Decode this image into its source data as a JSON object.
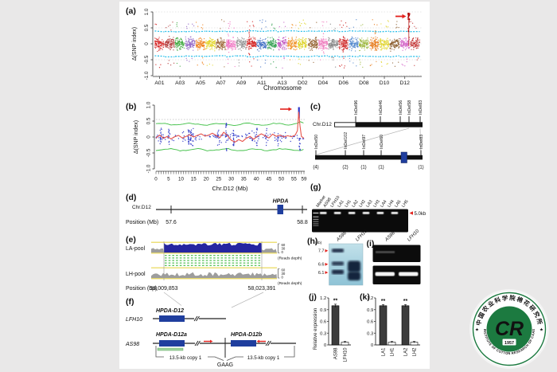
{
  "figure": {
    "canvas_bg": "#e9e8e8",
    "panel_bg": "#ffffff"
  },
  "panel_a": {
    "label": "(a)",
    "ylabel": "Δ(SNP index)",
    "xlabel": "Chromosome",
    "ytick_labels": [
      "1.0",
      "0.5",
      "0",
      "-0.5",
      "-1.0"
    ],
    "ytick_values": [
      1.0,
      0.5,
      0,
      -0.5,
      -1.0
    ],
    "xtick_labels": [
      "A01",
      "A03",
      "A05",
      "A07",
      "A09",
      "A11",
      "A13",
      "D02",
      "D04",
      "D06",
      "D08",
      "D10",
      "D12"
    ],
    "chromosomes": [
      "A01",
      "A02",
      "A03",
      "A04",
      "A05",
      "A06",
      "A07",
      "A08",
      "A09",
      "A10",
      "A11",
      "A12",
      "A13",
      "D01",
      "D02",
      "D03",
      "D04",
      "D05",
      "D06",
      "D07",
      "D08",
      "D09",
      "D10",
      "D11",
      "D12",
      "D13"
    ],
    "colors": [
      "#d42020",
      "#b03535",
      "#3ca83c",
      "#8f62c4",
      "#f07f16",
      "#e2d41e",
      "#9a6230",
      "#f06ec0",
      "#8f8f8f",
      "#d42222",
      "#3f6fc4",
      "#2f9e4f",
      "#c256c2",
      "#ef8c1a",
      "#ddd21c",
      "#8f5a28",
      "#ef7fc0",
      "#7f7f7f",
      "#cf2a2a",
      "#4f86cc",
      "#9ab63a",
      "#e87f22",
      "#e0d428",
      "#8a5a2a",
      "#d465c8",
      "#c43a3a"
    ],
    "threshold_color": "#2ec0ea",
    "highlight_color": "#b00000"
  },
  "panel_b": {
    "label": "(b)",
    "ylabel": "Δ(SNP index)",
    "xlabel": "Chr.D12 (Mb)",
    "ytick_labels": [
      "1.0",
      "0.5",
      "0",
      "-0.5",
      "-1.0"
    ],
    "ytick_values": [
      1.0,
      0.5,
      0,
      -0.5,
      -1.0
    ],
    "xtick_values": [
      0,
      5,
      10,
      15,
      20,
      25,
      30,
      35,
      40,
      45,
      50,
      55,
      59
    ],
    "point_color": "#2b35c8",
    "line_color": "#e8544b",
    "band_color": "#3dbf43"
  },
  "panel_c": {
    "label": "(c)",
    "chromosome": "Chr.D12",
    "top_markers": [
      "InDel96",
      "InDel46",
      "InDel56",
      "InDel58",
      "InDel83"
    ],
    "bottom_markers": [
      "InDel50",
      "InDel102",
      "InDel97",
      "InDel60",
      "InDel83"
    ],
    "recombinant_counts": [
      "(4)",
      "(2)",
      "(1)",
      "(1)",
      "(1)"
    ],
    "gene_color": "#1f3e9e"
  },
  "panel_d": {
    "label": "(d)",
    "chromosome": "Chr.D12",
    "gene": "HPDA",
    "axis_label": "Position (Mb)",
    "start": "57.6",
    "end": "58.8"
  },
  "panel_e": {
    "label": "(e)",
    "track1": "LA-pool",
    "track2": "LH-pool",
    "scale_ticks": [
      "60",
      "30",
      "0"
    ],
    "scale_caption": "(Reads depth)",
    "axis_label": "Position (bp)",
    "start": "58,009,853",
    "end": "58,023,391"
  },
  "panel_f": {
    "label": "(f)",
    "hap1_name": "LFH10",
    "hap1_gene": "HPDA-D12",
    "hap2_name": "AS98",
    "hap2_gene1": "HPDA-D12a",
    "hap2_gene2": "HPDA-D12b",
    "insertion": "GAAG",
    "copy1": "13.5-kb copy 1",
    "copy2": "13.5-kb copy 1"
  },
  "panel_g": {
    "label": "(g)",
    "lanes": [
      "Marker",
      "AS98",
      "LFH10",
      "LA1",
      "LH1",
      "LA2",
      "LH2",
      "LA3",
      "LH3",
      "LA4",
      "LH4",
      "LA5",
      "LH5"
    ],
    "band_lanes_idx": [
      1,
      3,
      5,
      7,
      9,
      11
    ],
    "band_label": "5.0kb"
  },
  "panel_h": {
    "label": "(h)",
    "unit": "(kb)",
    "lanes": [
      "AS98",
      "LFH10"
    ],
    "size_markers": [
      "7.7",
      "6.6",
      "6.1"
    ]
  },
  "panel_i": {
    "label": "(i)",
    "lanes": [
      "AS98",
      "LFH10"
    ]
  },
  "panel_j": {
    "label": "(j)",
    "ylabel": "Relative expression"
  },
  "panel_k": {
    "label": "(k)"
  },
  "chart_data": [
    {
      "id": "a",
      "type": "scatter",
      "title": "",
      "xlabel": "Chromosome",
      "ylabel": "Δ(SNP index)",
      "ylim": [
        -1.0,
        1.0
      ],
      "x_categories": [
        "A01",
        "A02",
        "A03",
        "A04",
        "A05",
        "A06",
        "A07",
        "A08",
        "A09",
        "A10",
        "A11",
        "A12",
        "A13",
        "D01",
        "D02",
        "D03",
        "D04",
        "D05",
        "D06",
        "D07",
        "D08",
        "D09",
        "D10",
        "D11",
        "D12",
        "D13"
      ],
      "gridlines": [
        -1.0,
        -0.5,
        0,
        0.5,
        1.0
      ],
      "threshold_lines": [
        0.4,
        -0.4
      ],
      "significant_peak": {
        "chromosome": "D12",
        "delta_snp_index": 1.0,
        "annotation": "red-arrow"
      }
    },
    {
      "id": "b",
      "type": "scatter+line",
      "xlabel": "Chr.D12 (Mb)",
      "ylabel": "Δ(SNP index)",
      "xlim": [
        0,
        59
      ],
      "ylim": [
        -1.0,
        1.0
      ],
      "xticks": [
        0,
        5,
        10,
        15,
        20,
        25,
        30,
        35,
        40,
        45,
        50,
        55,
        59
      ],
      "confidence_interval": [
        0.4,
        -0.4
      ],
      "significance_threshold": 0.55,
      "red_line": [
        [
          0,
          -0.03
        ],
        [
          1.5,
          0.06
        ],
        [
          3,
          -0.04
        ],
        [
          4.5,
          0.02
        ],
        [
          6,
          -0.06
        ],
        [
          7.5,
          0.01
        ],
        [
          9,
          0.05
        ],
        [
          10.5,
          -0.03
        ],
        [
          12,
          0.02
        ],
        [
          13.5,
          0.07
        ],
        [
          15,
          0.0
        ],
        [
          16.5,
          0.05
        ],
        [
          18,
          0.1
        ],
        [
          19.5,
          0.03
        ],
        [
          21,
          0.06
        ],
        [
          22.5,
          0.12
        ],
        [
          24,
          0.05
        ],
        [
          25.5,
          -0.02
        ],
        [
          27,
          0.15
        ],
        [
          28.5,
          0.05
        ],
        [
          30,
          -0.1
        ],
        [
          31.5,
          -0.16
        ],
        [
          33,
          -0.08
        ],
        [
          34.5,
          -0.14
        ],
        [
          36,
          -0.04
        ],
        [
          37.5,
          0.02
        ],
        [
          39,
          -0.07
        ],
        [
          40.5,
          0.03
        ],
        [
          42,
          0.1
        ],
        [
          43.5,
          0.04
        ],
        [
          45,
          -0.03
        ],
        [
          46.5,
          0.09
        ],
        [
          48,
          0.02
        ],
        [
          49.5,
          0.06
        ],
        [
          51,
          0.0
        ],
        [
          52.5,
          0.04
        ],
        [
          54,
          0.01
        ],
        [
          55.5,
          0.06
        ],
        [
          56.4,
          0.2
        ],
        [
          56.9,
          0.78
        ],
        [
          57.4,
          0.35
        ],
        [
          58,
          0.02
        ],
        [
          59,
          -0.04
        ]
      ],
      "peak": {
        "x": 57,
        "y": 0.9,
        "annotation": "red-arrow"
      }
    },
    {
      "id": "j",
      "type": "bar",
      "categories": [
        "AS98",
        "LFH10"
      ],
      "values": [
        1.0,
        0.07
      ],
      "errors": [
        0.04,
        0.02
      ],
      "significance": [
        "**",
        ""
      ],
      "ylabel": "Relative expression",
      "ylim": [
        0,
        1.2
      ],
      "yticks": [
        0,
        0.3,
        0.6,
        0.9,
        1.2
      ]
    },
    {
      "id": "k",
      "type": "bar",
      "categories": [
        "LA1",
        "LH1",
        "LA2",
        "LH2"
      ],
      "values": [
        1.0,
        0.07,
        1.0,
        0.07
      ],
      "errors": [
        0.03,
        0.02,
        0.03,
        0.02
      ],
      "significance": [
        "**",
        "",
        "**",
        ""
      ],
      "ylim": [
        0,
        1.2
      ],
      "yticks": [
        0,
        0.3,
        0.6,
        0.9,
        1.2
      ]
    }
  ],
  "logo": {
    "ring_text_top": "中国农业科学院棉花研究所",
    "ring_text_bottom": "INSTITUTE OF COTTON RESEARCH OF CAAS",
    "year": "1957",
    "monogram": "CR",
    "star": "★",
    "color": "#1c7a40"
  }
}
